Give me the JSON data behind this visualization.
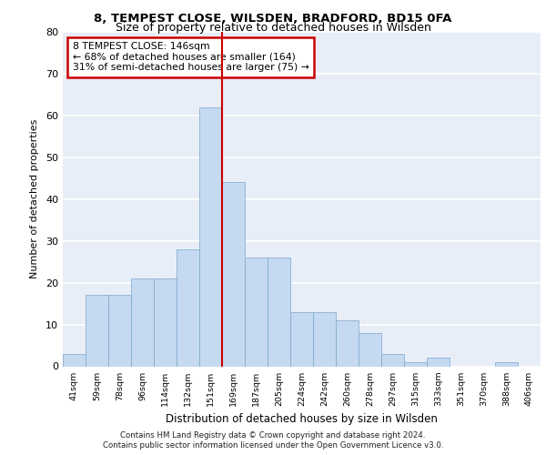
{
  "title1": "8, TEMPEST CLOSE, WILSDEN, BRADFORD, BD15 0FA",
  "title2": "Size of property relative to detached houses in Wilsden",
  "xlabel": "Distribution of detached houses by size in Wilsden",
  "ylabel": "Number of detached properties",
  "footer1": "Contains HM Land Registry data © Crown copyright and database right 2024.",
  "footer2": "Contains public sector information licensed under the Open Government Licence v3.0.",
  "annotation_line1": "8 TEMPEST CLOSE: 146sqm",
  "annotation_line2": "← 68% of detached houses are smaller (164)",
  "annotation_line3": "31% of semi-detached houses are larger (75) →",
  "bar_labels": [
    "41sqm",
    "59sqm",
    "78sqm",
    "96sqm",
    "114sqm",
    "132sqm",
    "151sqm",
    "169sqm",
    "187sqm",
    "205sqm",
    "224sqm",
    "242sqm",
    "260sqm",
    "278sqm",
    "297sqm",
    "315sqm",
    "333sqm",
    "351sqm",
    "370sqm",
    "388sqm",
    "406sqm"
  ],
  "bar_values": [
    3,
    17,
    17,
    21,
    21,
    28,
    62,
    44,
    26,
    26,
    13,
    13,
    11,
    8,
    3,
    1,
    2,
    0,
    0,
    1,
    0
  ],
  "bar_color": "#c5d9f0",
  "bar_edge_color": "#7aa6cc",
  "vline_x": 6.5,
  "vline_color": "#cc0000",
  "annotation_box_color": "#cc0000",
  "ylim": [
    0,
    80
  ],
  "yticks": [
    0,
    10,
    20,
    30,
    40,
    50,
    60,
    70,
    80
  ],
  "bg_color": "#e8eef8",
  "grid_color": "#ffffff"
}
